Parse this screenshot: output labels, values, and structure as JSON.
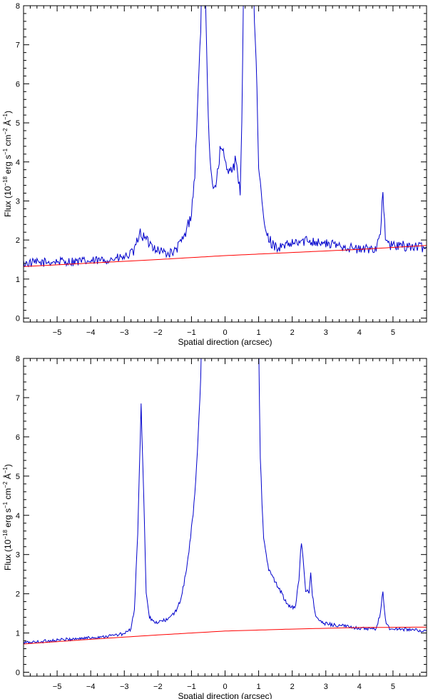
{
  "chart_data": [
    {
      "type": "line",
      "xlabel": "Spatial direction (arcsec)",
      "ylabel_parts": [
        "Flux (10",
        "−18",
        " erg s",
        "−1",
        " cm",
        "−2",
        " Å",
        "−1",
        ")"
      ],
      "xlim": [
        -6,
        6
      ],
      "ylim": [
        -0.1,
        8
      ],
      "xticks": [
        -5,
        -4,
        -3,
        -2,
        -1,
        0,
        1,
        2,
        3,
        4,
        5
      ],
      "xtick_labels": [
        "−5",
        "−4",
        "−3",
        "−2",
        "−1",
        "0",
        "1",
        "2",
        "3",
        "4",
        "5"
      ],
      "yticks": [
        0,
        1,
        2,
        3,
        4,
        5,
        6,
        7,
        8
      ],
      "ytick_labels": [
        "0",
        "1",
        "2",
        "3",
        "4",
        "5",
        "6",
        "7",
        "8"
      ],
      "series": [
        {
          "color": "#0000cc",
          "style": "noisy",
          "x": [
            -6.0,
            -5.5,
            -5.0,
            -4.5,
            -4.0,
            -3.5,
            -3.0,
            -2.7,
            -2.55,
            -2.45,
            -2.3,
            -2.0,
            -1.7,
            -1.5,
            -1.2,
            -1.0,
            -0.9,
            -0.8,
            -0.7,
            -0.62,
            -0.58,
            -0.5,
            -0.45,
            -0.35,
            -0.25,
            -0.15,
            -0.05,
            0.05,
            0.15,
            0.25,
            0.32,
            0.38,
            0.45,
            0.5,
            0.55,
            0.7,
            0.85,
            0.93,
            1.0,
            1.1,
            1.2,
            1.4,
            1.6,
            2.0,
            2.5,
            3.0,
            3.5,
            4.0,
            4.5,
            4.62,
            4.7,
            4.78,
            4.9,
            5.3,
            6.0
          ],
          "y": [
            1.4,
            1.42,
            1.45,
            1.45,
            1.45,
            1.5,
            1.55,
            1.7,
            2.2,
            2.1,
            1.95,
            1.75,
            1.65,
            1.7,
            2.1,
            2.7,
            3.7,
            5.8,
            8.0,
            8.0,
            8.0,
            5.0,
            4.0,
            3.4,
            3.5,
            4.3,
            4.2,
            3.8,
            3.9,
            3.8,
            4.1,
            3.5,
            3.3,
            5.0,
            8.0,
            8.0,
            8.0,
            6.5,
            3.8,
            3.0,
            2.2,
            1.9,
            1.8,
            1.9,
            2.0,
            1.9,
            1.85,
            1.75,
            1.8,
            2.2,
            3.15,
            2.0,
            1.85,
            1.85,
            1.8
          ],
          "noise": 0.12
        },
        {
          "color": "#ff0000",
          "style": "smooth",
          "x": [
            -6,
            -4,
            -2,
            0,
            2,
            4,
            6
          ],
          "y": [
            1.32,
            1.41,
            1.5,
            1.6,
            1.68,
            1.76,
            1.86
          ]
        }
      ]
    },
    {
      "type": "line",
      "xlabel": "Spatial direction (arcsec)",
      "ylabel_parts": [
        "Flux (10",
        "−18",
        " erg s",
        "−1",
        " cm",
        "−2",
        " Å",
        "−1",
        ")"
      ],
      "xlim": [
        -6,
        6
      ],
      "ylim": [
        -0.1,
        8
      ],
      "xticks": [
        -5,
        -4,
        -3,
        -2,
        -1,
        0,
        1,
        2,
        3,
        4,
        5
      ],
      "xtick_labels": [
        "−5",
        "−4",
        "−3",
        "−2",
        "−1",
        "0",
        "1",
        "2",
        "3",
        "4",
        "5"
      ],
      "yticks": [
        0,
        1,
        2,
        3,
        4,
        5,
        6,
        7,
        8
      ],
      "ytick_labels": [
        "0",
        "1",
        "2",
        "3",
        "4",
        "5",
        "6",
        "7",
        "8"
      ],
      "series": [
        {
          "color": "#0000cc",
          "style": "noisy",
          "x": [
            -6.0,
            -5.5,
            -5.0,
            -4.5,
            -4.0,
            -3.5,
            -3.0,
            -2.8,
            -2.7,
            -2.6,
            -2.5,
            -2.42,
            -2.35,
            -2.25,
            -2.1,
            -1.9,
            -1.7,
            -1.5,
            -1.3,
            -1.15,
            -1.05,
            -0.98,
            -0.9,
            -0.8,
            -0.7,
            -0.6,
            0.9,
            1.0,
            1.05,
            1.1,
            1.15,
            1.3,
            1.5,
            1.7,
            1.85,
            2.0,
            2.1,
            2.2,
            2.27,
            2.33,
            2.4,
            2.5,
            2.55,
            2.6,
            2.7,
            2.9,
            3.3,
            3.8,
            4.2,
            4.5,
            4.62,
            4.7,
            4.78,
            4.9,
            5.3,
            6.0
          ],
          "y": [
            0.75,
            0.78,
            0.82,
            0.85,
            0.88,
            0.92,
            0.98,
            1.1,
            1.6,
            3.5,
            6.8,
            4.5,
            2.0,
            1.4,
            1.25,
            1.3,
            1.35,
            1.5,
            1.9,
            2.6,
            3.3,
            3.8,
            4.5,
            6.0,
            8.0,
            8.0,
            8.0,
            8.0,
            5.5,
            4.3,
            3.4,
            2.6,
            2.3,
            2.0,
            1.7,
            1.65,
            1.7,
            2.4,
            3.3,
            2.9,
            2.1,
            2.0,
            2.5,
            2.0,
            1.4,
            1.25,
            1.2,
            1.15,
            1.1,
            1.1,
            1.5,
            2.05,
            1.3,
            1.1,
            1.1,
            1.05
          ],
          "noise": 0.05
        },
        {
          "color": "#ff0000",
          "style": "smooth",
          "x": [
            -6,
            -4,
            -2,
            0,
            2,
            4,
            6
          ],
          "y": [
            0.72,
            0.84,
            0.95,
            1.05,
            1.1,
            1.14,
            1.15
          ]
        }
      ]
    }
  ]
}
